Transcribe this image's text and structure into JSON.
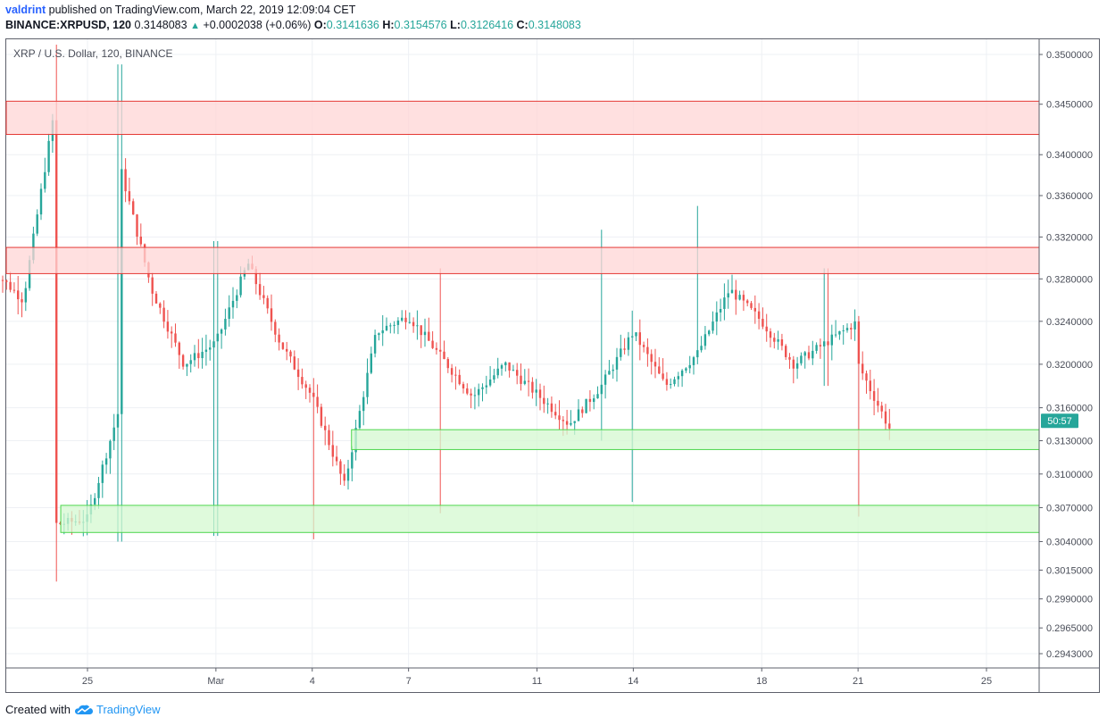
{
  "header": {
    "author": "valdrint",
    "published_text": "published on TradingView.com, March 22, 2019 12:09:04 CET",
    "symbol": "BINANCE:XRPUSD, 120",
    "last_price": "0.3148083",
    "change": "+0.0002038 (+0.06%)",
    "open_label": "O:",
    "open": "0.3141636",
    "high_label": "H:",
    "high": "0.3154576",
    "low_label": "L:",
    "low": "0.3126416",
    "close_label": "C:",
    "close": "0.3148083"
  },
  "legend": "XRP / U.S. Dollar, 120, BINANCE",
  "countdown": "50:57",
  "footer": {
    "created_with": "Created with",
    "brand": "TradingView"
  },
  "colors": {
    "up": "#26a69a",
    "down": "#ef5350",
    "resistance_fill": "#ffd6d6",
    "resistance_line": "#e53935",
    "support_fill": "#d4f8d0",
    "support_line": "#4cd64c"
  },
  "chart_data": {
    "type": "candlestick",
    "title": "XRP / U.S. Dollar, 120, BINANCE",
    "x_ticks": [
      "25",
      "Mar",
      "4",
      "7",
      "11",
      "14",
      "18",
      "21",
      "25"
    ],
    "y_ticks": [
      "0.3500000",
      "0.3450000",
      "0.3400000",
      "0.3360000",
      "0.3320000",
      "0.3280000",
      "0.3240000",
      "0.3200000",
      "0.3160000",
      "0.3130000",
      "0.3100000",
      "0.3070000",
      "0.3040000",
      "0.3015000",
      "0.2990000",
      "0.2965000",
      "0.2943000"
    ],
    "y_scale": "log",
    "grid": true,
    "zones": [
      {
        "kind": "resistance",
        "low": 0.342,
        "high": 0.3453
      },
      {
        "kind": "resistance",
        "low": 0.3285,
        "high": 0.331
      },
      {
        "kind": "support",
        "low": 0.3122,
        "high": 0.314
      },
      {
        "kind": "support",
        "low": 0.3048,
        "high": 0.3072
      }
    ],
    "price_path": [
      {
        "date": "2019-02-22",
        "price": 0.329
      },
      {
        "date": "2019-02-23",
        "price": 0.326
      },
      {
        "date": "2019-02-24",
        "price": 0.345
      },
      {
        "date": "2019-02-24",
        "price": 0.342
      },
      {
        "date": "2019-02-24",
        "price": 0.3055
      },
      {
        "date": "2019-02-25",
        "price": 0.306
      },
      {
        "date": "2019-02-26",
        "price": 0.316
      },
      {
        "date": "2019-02-26",
        "price": 0.339
      },
      {
        "date": "2019-02-27",
        "price": 0.327
      },
      {
        "date": "2019-02-28",
        "price": 0.32
      },
      {
        "date": "2019-03-01",
        "price": 0.322
      },
      {
        "date": "2019-03-02",
        "price": 0.3295
      },
      {
        "date": "2019-03-03",
        "price": 0.322
      },
      {
        "date": "2019-03-04",
        "price": 0.317
      },
      {
        "date": "2019-03-05",
        "price": 0.309
      },
      {
        "date": "2019-03-06",
        "price": 0.323
      },
      {
        "date": "2019-03-07",
        "price": 0.3245
      },
      {
        "date": "2019-03-09",
        "price": 0.317
      },
      {
        "date": "2019-03-10",
        "price": 0.32
      },
      {
        "date": "2019-03-12",
        "price": 0.3145
      },
      {
        "date": "2019-03-13",
        "price": 0.318
      },
      {
        "date": "2019-03-14",
        "price": 0.323
      },
      {
        "date": "2019-03-15",
        "price": 0.318
      },
      {
        "date": "2019-03-16",
        "price": 0.321
      },
      {
        "date": "2019-03-17",
        "price": 0.327
      },
      {
        "date": "2019-03-18",
        "price": 0.324
      },
      {
        "date": "2019-03-19",
        "price": 0.32
      },
      {
        "date": "2019-03-20",
        "price": 0.322
      },
      {
        "date": "2019-03-21",
        "price": 0.324
      },
      {
        "date": "2019-03-21",
        "price": 0.32
      },
      {
        "date": "2019-03-22",
        "price": 0.314
      },
      {
        "date": "2019-03-22",
        "price": 0.3148
      }
    ],
    "wick_extremes": [
      {
        "date": "2019-02-24",
        "high": 0.351,
        "low": 0.3005
      },
      {
        "date": "2019-02-26",
        "high": 0.349,
        "low": 0.304
      },
      {
        "date": "2019-03-01",
        "high": 0.3316,
        "low": 0.3045
      },
      {
        "date": "2019-03-04",
        "high": 0.315,
        "low": 0.3042
      },
      {
        "date": "2019-03-08",
        "high": 0.329,
        "low": 0.3065
      },
      {
        "date": "2019-03-13",
        "high": 0.3327,
        "low": 0.313
      },
      {
        "date": "2019-03-14",
        "high": 0.325,
        "low": 0.3075
      },
      {
        "date": "2019-03-16",
        "high": 0.335,
        "low": 0.32
      },
      {
        "date": "2019-03-20",
        "high": 0.329,
        "low": 0.318
      },
      {
        "date": "2019-03-21",
        "high": 0.3245,
        "low": 0.3062
      }
    ]
  }
}
